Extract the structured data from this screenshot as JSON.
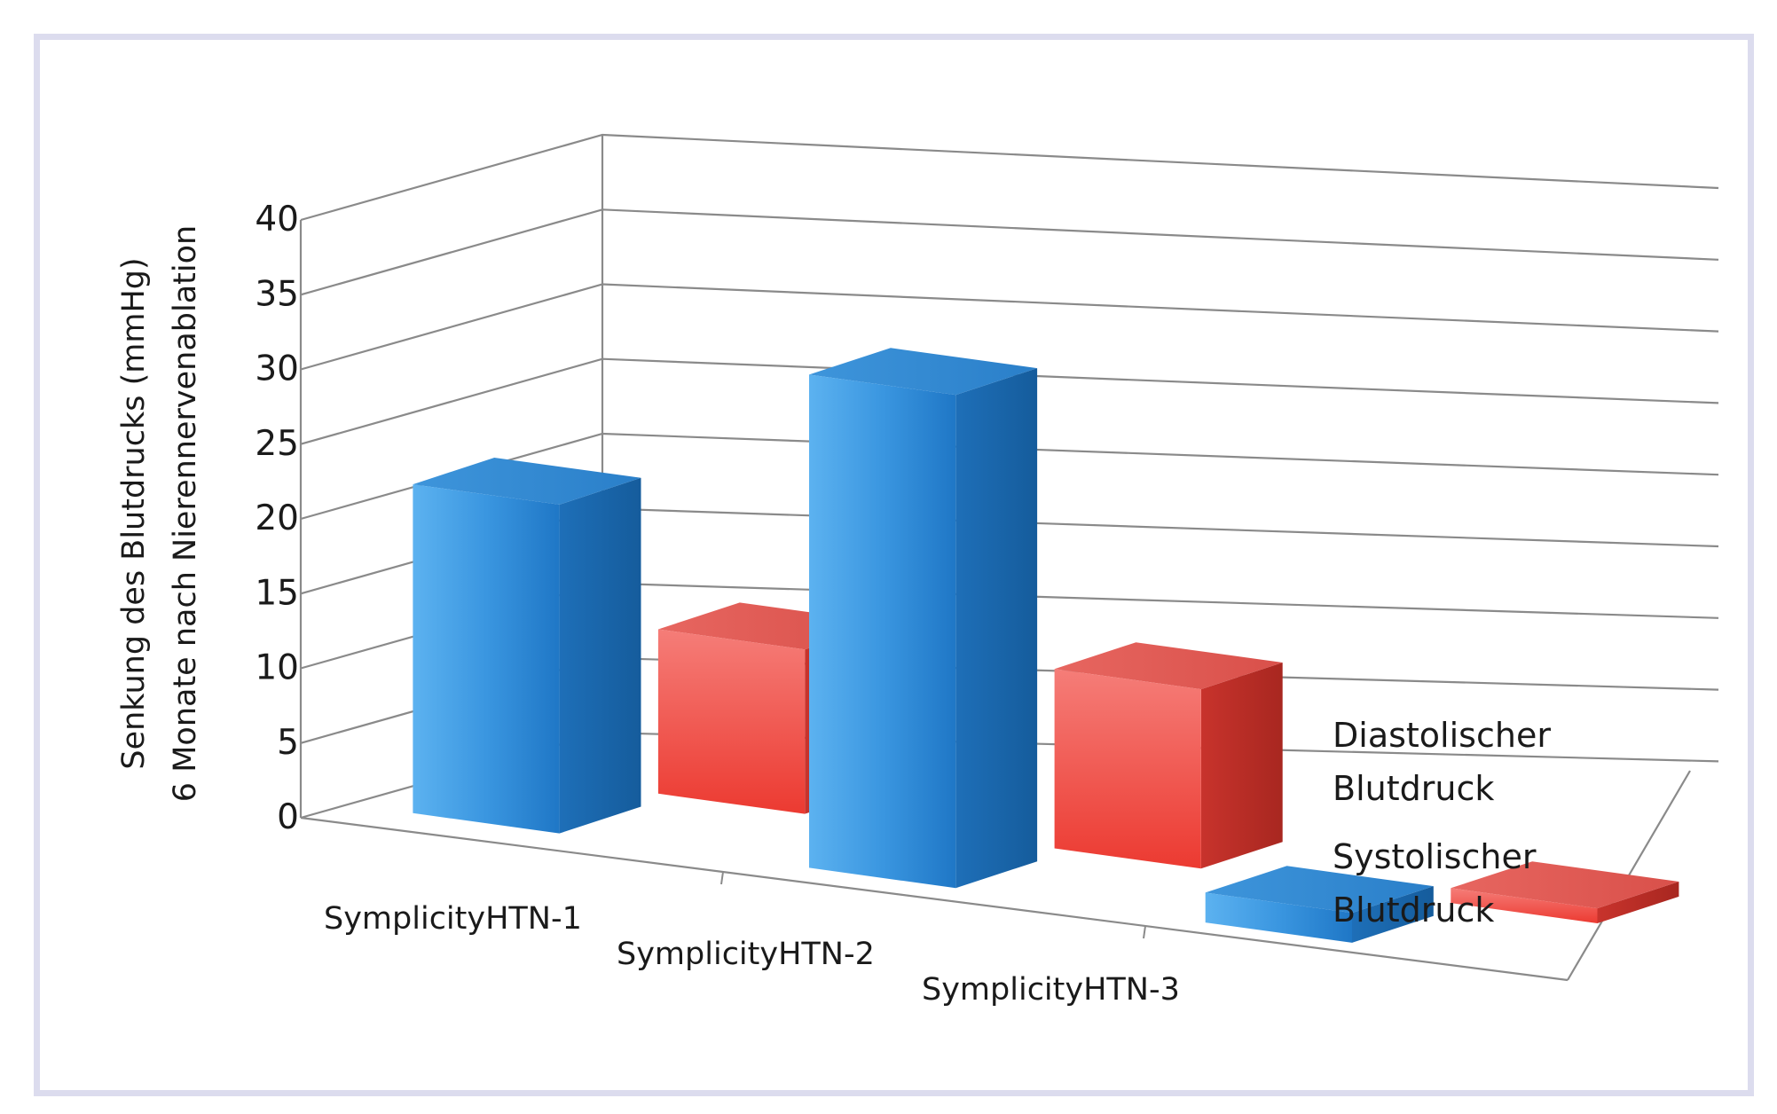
{
  "chart_data": {
    "type": "bar",
    "style": "3d-clustered-columns",
    "ylabel_line1": "Senkung des Blutdrucks (mmHg)",
    "ylabel_line2": "6 Monate nach Nierennervenablation",
    "yticks": [
      "0",
      "5",
      "10",
      "15",
      "20",
      "25",
      "30",
      "35",
      "40"
    ],
    "ylim": [
      0,
      40
    ],
    "grid": true,
    "legend_position": "right",
    "categories": [
      "SymplicityHTN-1",
      "SymplicityHTN-2",
      "SymplicityHTN-3"
    ],
    "series": [
      {
        "name_line1": "Systolischer",
        "name_line2": "Blutdruck",
        "values": [
          22,
          33,
          2
        ],
        "color": "#2f86d6"
      },
      {
        "name_line1": "Diastolischer",
        "name_line2": "Blutdruck",
        "values": [
          11,
          12,
          1
        ],
        "color": "#e8473f"
      }
    ]
  }
}
